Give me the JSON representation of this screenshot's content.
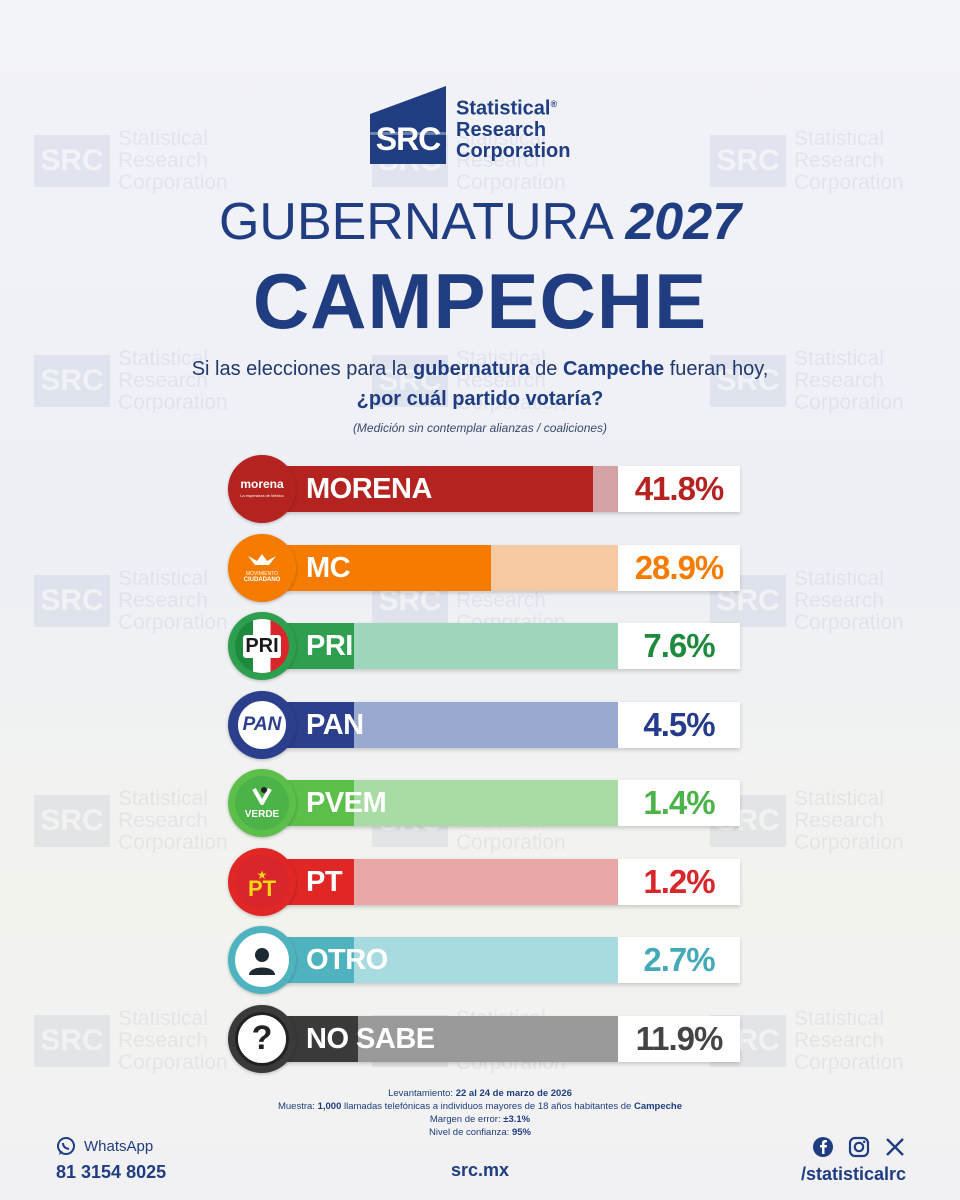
{
  "logo": {
    "mark": "SRC",
    "line1": "Statistical",
    "reg": "®",
    "line2": "Research",
    "line3": "Corporation"
  },
  "title": {
    "prefix": "GUBERNATURA",
    "year": "2027",
    "state": "CAMPECHE"
  },
  "question": {
    "p1": "Si las elecciones para la ",
    "b1": "gubernatura",
    "p2": " de ",
    "b2": "Campeche",
    "p3": " fueran hoy,",
    "line2": "¿por cuál partido votaría?"
  },
  "note": "(Medición sin contemplar alianzas / coaliciones)",
  "chart_data": {
    "type": "bar",
    "title": "GUBERNATURA 2027 CAMPECHE",
    "categories": [
      "MORENA",
      "MC",
      "PRI",
      "PAN",
      "PVEM",
      "PT",
      "OTRO",
      "NO SABE"
    ],
    "values": [
      41.8,
      28.9,
      7.6,
      4.5,
      1.4,
      1.2,
      2.7,
      11.9
    ],
    "value_labels": [
      "41.8%",
      "28.9%",
      "7.6%",
      "4.5%",
      "1.4%",
      "1.2%",
      "2.7%",
      "11.9%"
    ],
    "unit": "%",
    "colors": {
      "main": [
        "#b4231f",
        "#f57c00",
        "#2e9e4f",
        "#2b3f8c",
        "#5cbf4a",
        "#e02726",
        "#4fb3bf",
        "#3a3a3a"
      ],
      "light": [
        "#d4a2a5",
        "#f6c9a2",
        "#9fd5ba",
        "#9aa9cf",
        "#a9dca5",
        "#e9a7a8",
        "#a8dbe0",
        "#9a9a9a"
      ],
      "value_text": [
        "#b4231f",
        "#f57c00",
        "#1d8a3e",
        "#253c8c",
        "#4cb348",
        "#d9262b",
        "#44aab8",
        "#444444"
      ]
    }
  },
  "badges": {
    "morena": {
      "name": "morena",
      "tag": "La esperanza de México"
    },
    "mc": {
      "line1": "MOVIMIENTO",
      "line2": "CIUDADANO"
    },
    "pri": "PRI",
    "pan": "PAN",
    "pvem": "VERDE",
    "pt": "PT"
  },
  "footer": {
    "l1_label": "Levantamiento: ",
    "l1_value": "22 al 24 de marzo de 2026",
    "l2_label": "Muestra: ",
    "l2_n": "1,000",
    "l2_text": " llamadas telefónicas a individuos mayores de 18 años habitantes de ",
    "l2_place": "Campeche",
    "l3_label": "Margen de error: ",
    "l3_value": "±3.1%",
    "l4_label": "Nivel de confianza: ",
    "l4_value": "95%"
  },
  "contact": {
    "whatsapp_label": "WhatsApp",
    "phone": "81 3154 8025",
    "site": "src.mx",
    "handle": "/statisticalrc"
  },
  "watermark": {
    "mark": "SRC",
    "l1": "Statistical",
    "l2": "Research",
    "l3": "Corporation"
  }
}
